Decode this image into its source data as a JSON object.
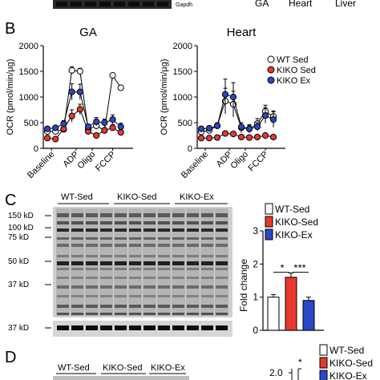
{
  "top_labels": {
    "gapdh": "Gapdh",
    "tissues": [
      "GA",
      "Heart",
      "Liver"
    ]
  },
  "panels": {
    "B": {
      "letter": "B",
      "ylabel": "OCR (pmol/min/µg)",
      "legend": [
        "WT Sed",
        "KIKO Sed",
        "KIKO Ex"
      ]
    },
    "C": {
      "letter": "C",
      "lanes": [
        "WT-Sed",
        "KIKO-Sed",
        "KIKO-Ex"
      ],
      "markers": [
        "150 kD",
        "100 kD",
        "75 kD",
        "50 kD",
        "37 kD",
        "37 kD"
      ],
      "legend": [
        "WT-Sed",
        "KIKO-Sed",
        "KIKO-Ex"
      ],
      "ylabel": "Fold change",
      "sig": [
        "*",
        "***"
      ]
    },
    "D": {
      "letter": "D",
      "lanes": [
        "WT-Sed",
        "KIKO-Sed",
        "KIKO-Ex"
      ],
      "legend": [
        "WT-Sed",
        "KIKO-Sed",
        "KIKO-Ex"
      ],
      "ytick": "2.0",
      "sig": "*"
    }
  },
  "colors": {
    "wt": "#ffffff",
    "kiko_sed": "#e8382c",
    "kiko_ex": "#2b46c8",
    "axis": "#000000"
  },
  "chart_data": [
    {
      "type": "line",
      "title": "GA",
      "ylabel": "OCR (pmol/min/µg)",
      "xticks": [
        "Baseline",
        "ADP",
        "Oligo",
        "FCCP"
      ],
      "ylim": [
        0,
        2000
      ],
      "yticks": [
        0,
        500,
        1000,
        1500,
        2000
      ],
      "series": [
        {
          "name": "WT Sed",
          "color": "#ffffff",
          "x": [
            1,
            2,
            3,
            4,
            5,
            6,
            7,
            8,
            9,
            10,
            11
          ],
          "values": [
            330,
            330,
            370,
            1520,
            1500,
            370,
            440,
            350,
            1420,
            1180,
            null
          ],
          "err": [
            30,
            30,
            40,
            70,
            60,
            60,
            70,
            40,
            0,
            0,
            null
          ]
        },
        {
          "name": "KIKO Sed",
          "color": "#e8382c",
          "x": [
            1,
            2,
            3,
            4,
            5,
            6,
            7,
            8,
            9,
            10,
            11
          ],
          "values": [
            200,
            180,
            380,
            630,
            760,
            330,
            250,
            350,
            400,
            310,
            null
          ],
          "err": [
            30,
            30,
            70,
            120,
            100,
            60,
            40,
            50,
            60,
            40,
            null
          ]
        },
        {
          "name": "KIKO Ex",
          "color": "#2b46c8",
          "x": [
            1,
            2,
            3,
            4,
            5,
            6,
            7,
            8,
            9,
            10,
            11
          ],
          "values": [
            380,
            400,
            480,
            1100,
            1100,
            420,
            520,
            500,
            560,
            420,
            null
          ],
          "err": [
            40,
            40,
            60,
            160,
            150,
            50,
            80,
            70,
            90,
            70,
            null
          ]
        }
      ]
    },
    {
      "type": "line",
      "title": "Heart",
      "ylabel": "OCR (pmol/min/µg)",
      "xticks": [
        "Baseline",
        "ADP",
        "Oligo",
        "FCCP"
      ],
      "ylim": [
        0,
        2000
      ],
      "yticks": [
        0,
        500,
        1000,
        1500,
        2000
      ],
      "series": [
        {
          "name": "WT Sed",
          "color": "#ffffff",
          "x": [
            1,
            2,
            3,
            4,
            5,
            6,
            7,
            8,
            9,
            10,
            11
          ],
          "values": [
            320,
            350,
            440,
            920,
            860,
            400,
            380,
            480,
            720,
            620,
            null
          ],
          "err": [
            40,
            40,
            60,
            250,
            250,
            100,
            80,
            100,
            120,
            110,
            null
          ]
        },
        {
          "name": "KIKO Sed",
          "color": "#e8382c",
          "x": [
            1,
            2,
            3,
            4,
            5,
            6,
            7,
            8,
            9,
            10,
            11
          ],
          "values": [
            200,
            200,
            210,
            290,
            280,
            220,
            210,
            220,
            250,
            220,
            null
          ],
          "err": [
            20,
            20,
            20,
            30,
            30,
            20,
            20,
            20,
            30,
            20,
            null
          ]
        },
        {
          "name": "KIKO Ex",
          "color": "#2b46c8",
          "x": [
            1,
            2,
            3,
            4,
            5,
            6,
            7,
            8,
            9,
            10,
            11
          ],
          "values": [
            380,
            390,
            440,
            1050,
            1000,
            420,
            380,
            420,
            640,
            560,
            null
          ],
          "err": [
            50,
            50,
            60,
            300,
            280,
            80,
            70,
            80,
            150,
            150,
            null
          ]
        }
      ]
    },
    {
      "type": "bar",
      "ylabel": "Fold change",
      "categories": [
        "WT-Sed",
        "KIKO-Sed",
        "KIKO-Ex"
      ],
      "values": [
        1.0,
        1.6,
        0.9
      ],
      "err": [
        0.08,
        0.13,
        0.1
      ],
      "colors": [
        "#ffffff",
        "#e8382c",
        "#2b46c8"
      ],
      "ylim": [
        0,
        3
      ],
      "yticks": [
        0,
        1,
        2,
        3
      ],
      "annotations": [
        "*",
        "***"
      ]
    }
  ]
}
